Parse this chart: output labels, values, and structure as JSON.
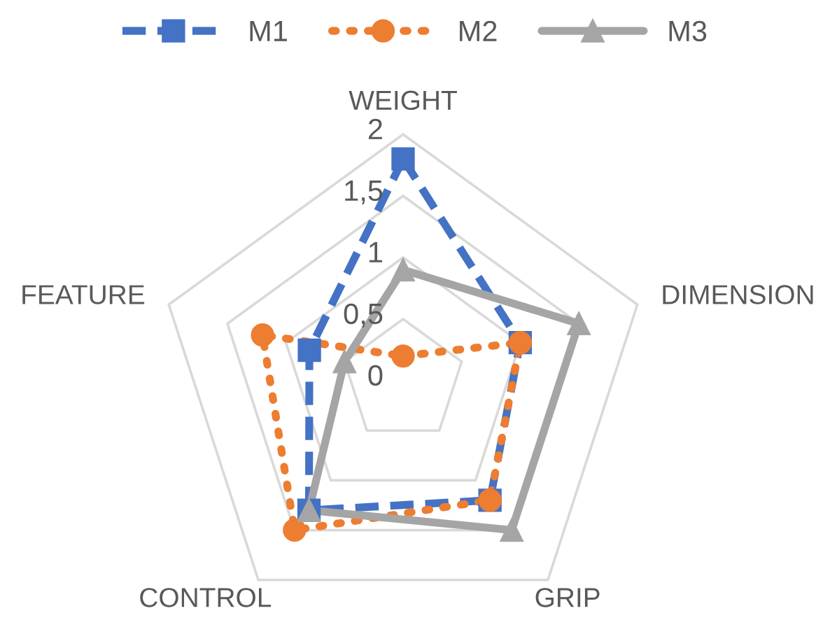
{
  "chart_data": {
    "type": "radar",
    "categories": [
      "WEIGHT",
      "DIMENSION",
      "GRIP",
      "CONTROL",
      "FEATURE"
    ],
    "series": [
      {
        "name": "M1",
        "color": "#4472c4",
        "marker": "square",
        "line_style": "dashed",
        "values": [
          1.8,
          1.0,
          1.2,
          1.3,
          0.8
        ]
      },
      {
        "name": "M2",
        "color": "#ed7d31",
        "marker": "circle",
        "line_style": "dotted",
        "values": [
          0.2,
          1.0,
          1.2,
          1.5,
          1.2
        ]
      },
      {
        "name": "M3",
        "color": "#a5a5a5",
        "marker": "triangle",
        "line_style": "solid",
        "values": [
          0.9,
          1.5,
          1.5,
          1.3,
          0.5
        ]
      }
    ],
    "ylim": [
      0,
      2
    ],
    "yticks": [
      0,
      {
        "value": 0.5,
        "label": "0,5"
      },
      1,
      {
        "value": 1.5,
        "label": "1,5"
      },
      2
    ],
    "grid": true,
    "legend": "top"
  }
}
